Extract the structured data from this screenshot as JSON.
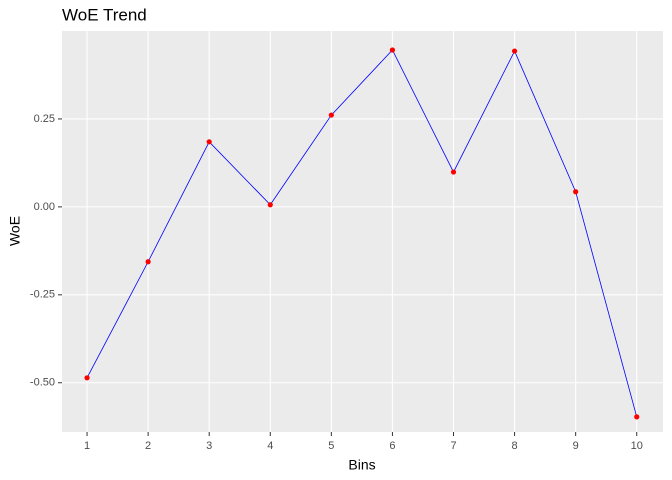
{
  "chart_data": {
    "type": "line",
    "title": "WoE Trend",
    "x_label": "Bins",
    "y_label": "WoE",
    "x": [
      1,
      2,
      3,
      4,
      5,
      6,
      7,
      8,
      9,
      10
    ],
    "series": [
      {
        "name": "WoE",
        "line_color": "#0000ff",
        "point_color": "#ff0000",
        "values": [
          -0.486,
          -0.156,
          0.185,
          0.006,
          0.261,
          0.446,
          0.099,
          0.443,
          0.043,
          -0.597
        ]
      }
    ],
    "xlim": [
      0.59,
      10.43
    ],
    "xticks": [
      1,
      2,
      3,
      4,
      5,
      6,
      7,
      8,
      9,
      10
    ],
    "ylim": [
      -0.64,
      0.5
    ],
    "yticks": [
      {
        "value": -0.5,
        "label": "-0.50"
      },
      {
        "value": -0.25,
        "label": "-0.25"
      },
      {
        "value": 0,
        "label": "0.00"
      },
      {
        "value": 0.25,
        "label": "0.25"
      }
    ],
    "grid": true
  }
}
